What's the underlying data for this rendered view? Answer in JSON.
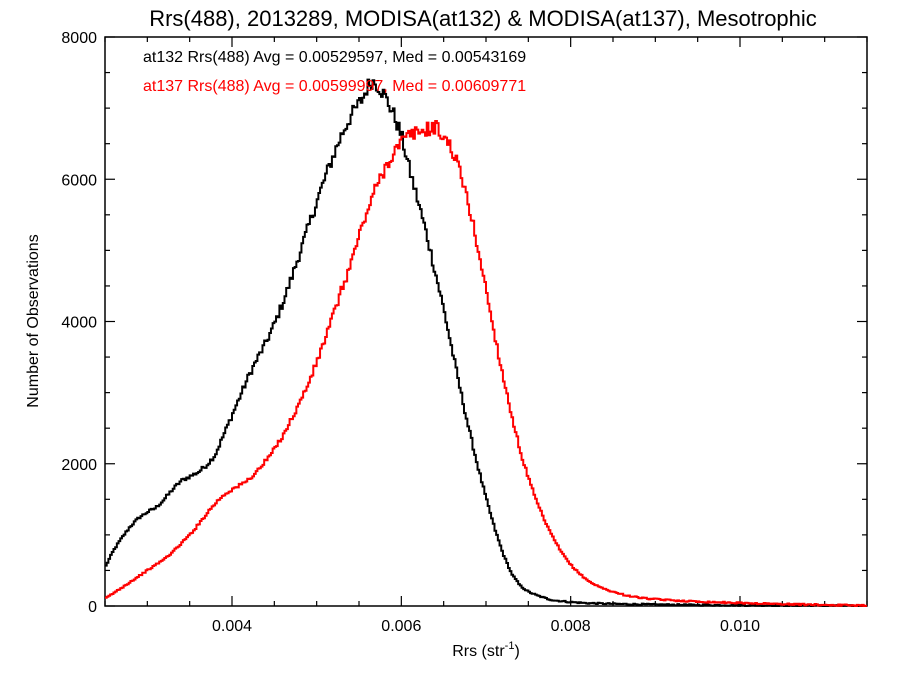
{
  "chart_data": {
    "type": "line",
    "title": "Rrs(488), 2013289, MODISA(at132) & MODISA(at137), Mesotrophic",
    "xlabel_main": "Rrs (str",
    "xlabel_sup": "-1",
    "xlabel_close": ")",
    "ylabel": "Number of Observations",
    "xlim": [
      0.0025,
      0.0115
    ],
    "ylim": [
      0,
      8000
    ],
    "grid": false,
    "x_ticks": [
      0.004,
      0.006,
      0.008,
      0.01
    ],
    "x_tick_labels": [
      "0.004",
      "0.006",
      "0.008",
      "0.010"
    ],
    "y_ticks": [
      0,
      2000,
      4000,
      6000,
      8000
    ],
    "y_tick_labels": [
      "0",
      "2000",
      "4000",
      "6000",
      "8000"
    ],
    "colors": {
      "at132": "#000000",
      "at137": "#ff0000"
    },
    "annotations": [
      {
        "text": "at132 Rrs(488) Avg = 0.00529597, Med = 0.00543169",
        "color": "#000000"
      },
      {
        "text": "at137 Rrs(488) Avg = 0.00599997, Med = 0.00609771",
        "color": "#ff0000"
      }
    ],
    "series": [
      {
        "color": "#000000",
        "points": [
          [
            0.0025,
            540
          ],
          [
            0.0026,
            780
          ],
          [
            0.0027,
            960
          ],
          [
            0.0028,
            1120
          ],
          [
            0.0029,
            1240
          ],
          [
            0.003,
            1320
          ],
          [
            0.0031,
            1380
          ],
          [
            0.0032,
            1500
          ],
          [
            0.0033,
            1640
          ],
          [
            0.0034,
            1760
          ],
          [
            0.0035,
            1820
          ],
          [
            0.0036,
            1880
          ],
          [
            0.0037,
            1980
          ],
          [
            0.0038,
            2120
          ],
          [
            0.0039,
            2400
          ],
          [
            0.004,
            2680
          ],
          [
            0.0041,
            2960
          ],
          [
            0.0042,
            3240
          ],
          [
            0.0043,
            3480
          ],
          [
            0.0044,
            3700
          ],
          [
            0.0045,
            3960
          ],
          [
            0.0046,
            4260
          ],
          [
            0.0047,
            4600
          ],
          [
            0.0048,
            4960
          ],
          [
            0.0049,
            5320
          ],
          [
            0.005,
            5680
          ],
          [
            0.0051,
            6020
          ],
          [
            0.0052,
            6340
          ],
          [
            0.0053,
            6640
          ],
          [
            0.0054,
            6880
          ],
          [
            0.0055,
            7060
          ],
          [
            0.00555,
            7150
          ],
          [
            0.0056,
            7300
          ],
          [
            0.00565,
            7380
          ],
          [
            0.0057,
            7350
          ],
          [
            0.00575,
            7280
          ],
          [
            0.0058,
            7180
          ],
          [
            0.0059,
            6940
          ],
          [
            0.006,
            6620
          ],
          [
            0.0061,
            6120
          ],
          [
            0.0062,
            5680
          ],
          [
            0.0063,
            5220
          ],
          [
            0.0064,
            4700
          ],
          [
            0.0065,
            4180
          ],
          [
            0.0066,
            3600
          ],
          [
            0.0067,
            3020
          ],
          [
            0.0068,
            2480
          ],
          [
            0.0069,
            1980
          ],
          [
            0.007,
            1520
          ],
          [
            0.0071,
            1100
          ],
          [
            0.0072,
            740
          ],
          [
            0.0073,
            460
          ],
          [
            0.0074,
            290
          ],
          [
            0.0075,
            200
          ],
          [
            0.0076,
            150
          ],
          [
            0.0077,
            110
          ],
          [
            0.0078,
            80
          ],
          [
            0.008,
            55
          ],
          [
            0.0082,
            40
          ],
          [
            0.0085,
            30
          ],
          [
            0.009,
            20
          ],
          [
            0.0095,
            14
          ],
          [
            0.01,
            10
          ],
          [
            0.0105,
            6
          ],
          [
            0.011,
            4
          ],
          [
            0.0115,
            2
          ]
        ]
      },
      {
        "color": "#ff0000",
        "points": [
          [
            0.0025,
            100
          ],
          [
            0.0026,
            180
          ],
          [
            0.0027,
            260
          ],
          [
            0.0028,
            340
          ],
          [
            0.0029,
            420
          ],
          [
            0.003,
            500
          ],
          [
            0.0031,
            580
          ],
          [
            0.0032,
            660
          ],
          [
            0.0033,
            760
          ],
          [
            0.0034,
            880
          ],
          [
            0.0035,
            1000
          ],
          [
            0.0036,
            1140
          ],
          [
            0.0037,
            1300
          ],
          [
            0.0038,
            1440
          ],
          [
            0.0039,
            1560
          ],
          [
            0.004,
            1640
          ],
          [
            0.0041,
            1700
          ],
          [
            0.0042,
            1780
          ],
          [
            0.0043,
            1900
          ],
          [
            0.0044,
            2040
          ],
          [
            0.0045,
            2200
          ],
          [
            0.0046,
            2400
          ],
          [
            0.0047,
            2620
          ],
          [
            0.0048,
            2860
          ],
          [
            0.0049,
            3120
          ],
          [
            0.005,
            3420
          ],
          [
            0.0051,
            3760
          ],
          [
            0.0052,
            4100
          ],
          [
            0.0053,
            4460
          ],
          [
            0.0054,
            4800
          ],
          [
            0.0055,
            5200
          ],
          [
            0.0056,
            5560
          ],
          [
            0.0057,
            5880
          ],
          [
            0.0058,
            6140
          ],
          [
            0.0059,
            6360
          ],
          [
            0.006,
            6520
          ],
          [
            0.0061,
            6620
          ],
          [
            0.0062,
            6660
          ],
          [
            0.0063,
            6700
          ],
          [
            0.0064,
            6740
          ],
          [
            0.0065,
            6600
          ],
          [
            0.0066,
            6420
          ],
          [
            0.0067,
            6080
          ],
          [
            0.0068,
            5620
          ],
          [
            0.0069,
            5060
          ],
          [
            0.007,
            4460
          ],
          [
            0.0071,
            3820
          ],
          [
            0.0072,
            3240
          ],
          [
            0.0073,
            2700
          ],
          [
            0.0074,
            2200
          ],
          [
            0.0075,
            1800
          ],
          [
            0.0076,
            1460
          ],
          [
            0.0077,
            1180
          ],
          [
            0.0078,
            940
          ],
          [
            0.0079,
            740
          ],
          [
            0.008,
            580
          ],
          [
            0.0081,
            460
          ],
          [
            0.0082,
            360
          ],
          [
            0.0083,
            290
          ],
          [
            0.0084,
            240
          ],
          [
            0.0085,
            200
          ],
          [
            0.0086,
            165
          ],
          [
            0.0087,
            140
          ],
          [
            0.0088,
            120
          ],
          [
            0.0089,
            105
          ],
          [
            0.009,
            95
          ],
          [
            0.0092,
            80
          ],
          [
            0.0094,
            68
          ],
          [
            0.0096,
            58
          ],
          [
            0.0098,
            50
          ],
          [
            0.01,
            42
          ],
          [
            0.0102,
            36
          ],
          [
            0.0104,
            30
          ],
          [
            0.0106,
            25
          ],
          [
            0.0108,
            20
          ],
          [
            0.011,
            16
          ],
          [
            0.0112,
            12
          ],
          [
            0.0115,
            8
          ]
        ]
      }
    ]
  }
}
